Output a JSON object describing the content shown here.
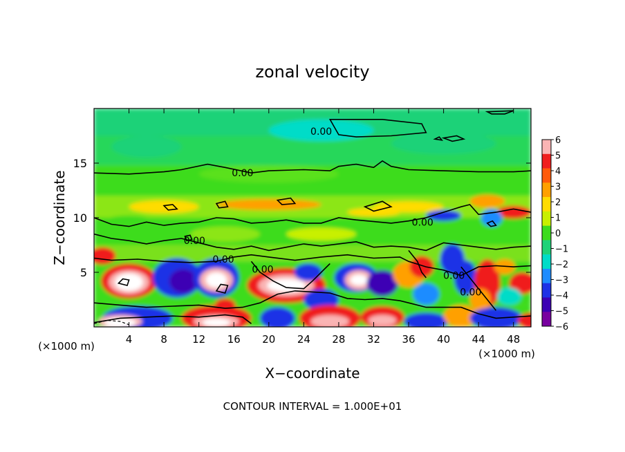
{
  "chart_data": {
    "type": "heatmap",
    "title": "zonal velocity",
    "xlabel": "X−coordinate",
    "ylabel": "Z−coordinate",
    "x_unit_label": "(×1000 m)",
    "y_unit_label": "(×1000 m)",
    "xlim": [
      0,
      50
    ],
    "ylim": [
      0,
      20
    ],
    "x_ticks": [
      4,
      8,
      12,
      16,
      20,
      24,
      28,
      32,
      36,
      40,
      44,
      48
    ],
    "y_ticks": [
      5,
      10,
      15
    ],
    "colorbar": {
      "ticks": [
        6,
        5,
        4,
        3,
        2,
        1,
        0,
        -1,
        -2,
        -3,
        -4,
        -5,
        -6
      ],
      "tick_labels": [
        "6",
        "5",
        "4",
        "3",
        "2",
        "1",
        "0",
        "−1",
        "−2",
        "−3",
        "−4",
        "−5",
        "−6"
      ],
      "colors": [
        "#fab4b4",
        "#f01e1e",
        "#ff5a0a",
        "#ffa000",
        "#ffdc00",
        "#c8f000",
        "#3cdc1e",
        "#1ed278",
        "#00dcc8",
        "#1e8cff",
        "#1e32e6",
        "#3c00b4",
        "#7800a0"
      ]
    },
    "contour_labels": [
      {
        "x": 26,
        "z": 17.9,
        "text": "0.00"
      },
      {
        "x": 17,
        "z": 14.1,
        "text": "0.00"
      },
      {
        "x": 37.6,
        "z": 9.6,
        "text": "0.00"
      },
      {
        "x": 11.5,
        "z": 7.9,
        "text": "0.00"
      },
      {
        "x": 14.8,
        "z": 6.2,
        "text": "0.00"
      },
      {
        "x": 19.3,
        "z": 5.3,
        "text": "0.00"
      },
      {
        "x": 41.2,
        "z": 4.7,
        "text": "0.00"
      },
      {
        "x": 43.1,
        "z": 3.2,
        "text": "0.00"
      }
    ],
    "footer": "CONTOUR INTERVAL = 1.000E+01"
  }
}
